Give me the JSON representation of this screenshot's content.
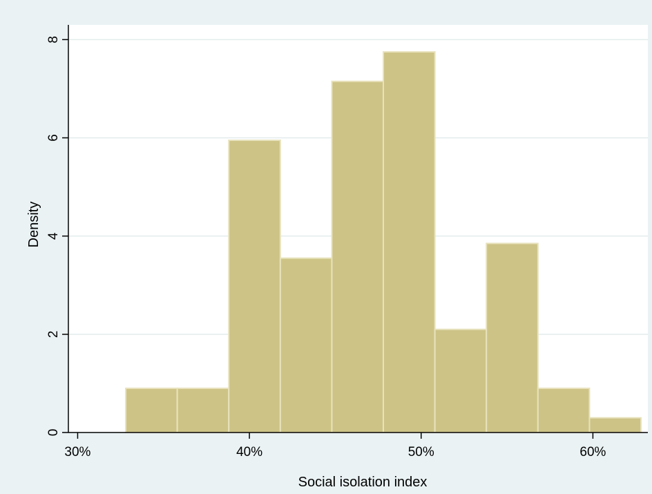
{
  "chart_data": {
    "type": "bar",
    "subtype": "histogram",
    "title": "",
    "xlabel": "Social isolation  index",
    "ylabel": "Density",
    "xlim": [
      29.5,
      63.2
    ],
    "ylim": [
      0,
      8.3
    ],
    "x_ticks": [
      30,
      40,
      50,
      60
    ],
    "x_tick_labels": [
      "30%",
      "40%",
      "50%",
      "60%"
    ],
    "y_ticks": [
      0,
      2,
      4,
      6,
      8
    ],
    "y_tick_labels": [
      "0",
      "2",
      "4",
      "6",
      "8"
    ],
    "bins": [
      {
        "x0": 32.8,
        "x1": 35.8,
        "density": 0.9
      },
      {
        "x0": 35.8,
        "x1": 38.8,
        "density": 0.9
      },
      {
        "x0": 38.8,
        "x1": 41.8,
        "density": 5.95
      },
      {
        "x0": 41.8,
        "x1": 44.8,
        "density": 3.55
      },
      {
        "x0": 44.8,
        "x1": 47.8,
        "density": 7.15
      },
      {
        "x0": 47.8,
        "x1": 50.8,
        "density": 7.75
      },
      {
        "x0": 50.8,
        "x1": 53.8,
        "density": 2.1
      },
      {
        "x0": 53.8,
        "x1": 56.8,
        "density": 3.85
      },
      {
        "x0": 56.8,
        "x1": 59.8,
        "density": 0.9
      },
      {
        "x0": 59.8,
        "x1": 62.8,
        "density": 0.3
      }
    ],
    "grid": true,
    "legend": "none",
    "colors": {
      "bar_fill": "#cdc386",
      "bar_edge": "#e8e2bd",
      "plot_background": "#ffffff",
      "outer_background": "#eaf2f3",
      "grid": "#e3ebec",
      "axis": "#000000"
    }
  }
}
